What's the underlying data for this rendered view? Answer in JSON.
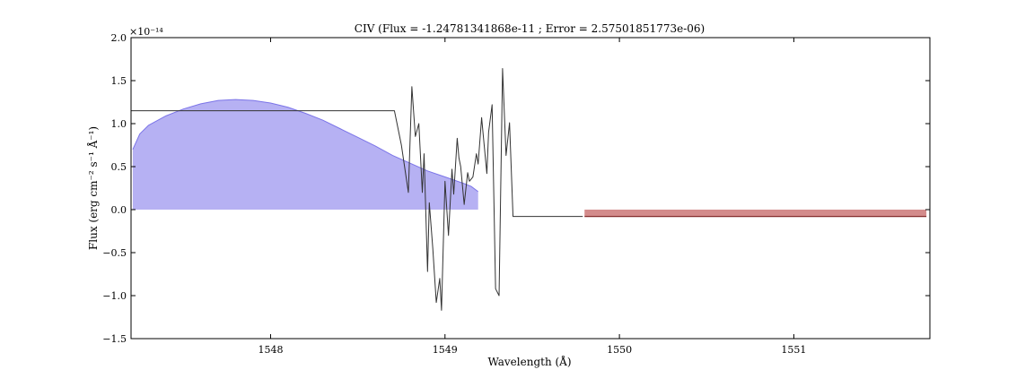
{
  "chart_data": {
    "type": "line",
    "title": "CIV (Flux = -1.24781341868e-11 ; Error = 2.57501851773e-06)",
    "xlabel": "Wavelength (Å)",
    "ylabel": "Flux (erg cm⁻² s⁻¹ Å⁻¹)",
    "y_offset_label": "×10⁻¹⁴",
    "xlim": [
      1547.2,
      1551.78
    ],
    "ylim": [
      -1.5,
      2.0
    ],
    "y_unit_scale": 1e-14,
    "x_ticks": [
      1548,
      1549,
      1550,
      1551
    ],
    "x_tick_labels": [
      "1548",
      "1549",
      "1550",
      "1551"
    ],
    "y_ticks": [
      -1.5,
      -1.0,
      -0.5,
      0.0,
      0.5,
      1.0,
      1.5,
      2.0
    ],
    "y_tick_labels": [
      "−1.5",
      "−1.0",
      "−0.5",
      "0.0",
      "0.5",
      "1.0",
      "1.5",
      "2.0"
    ],
    "grid": false,
    "series": [
      {
        "kind": "line",
        "color": "#333333",
        "x": [
          1547.2,
          1548.71,
          1548.75,
          1548.79,
          1548.81,
          1548.83,
          1548.85,
          1548.87,
          1548.88,
          1548.9,
          1548.91,
          1548.93,
          1548.95,
          1548.97,
          1548.98,
          1549.0,
          1549.02,
          1549.04,
          1549.05,
          1549.07,
          1549.08,
          1549.09,
          1549.11,
          1549.13,
          1549.14,
          1549.16,
          1549.18,
          1549.19,
          1549.21,
          1549.22,
          1549.24,
          1549.25,
          1549.27,
          1549.29,
          1549.31,
          1549.33,
          1549.35,
          1549.37,
          1549.39,
          1549.4,
          1549.42,
          1549.43,
          1549.45,
          1549.47,
          1549.49,
          1549.79
        ],
        "y": [
          1.15,
          1.15,
          0.75,
          0.2,
          1.43,
          0.85,
          1.0,
          0.2,
          0.65,
          -0.72,
          0.08,
          -0.45,
          -1.08,
          -0.8,
          -1.17,
          0.33,
          -0.3,
          0.47,
          0.18,
          0.83,
          0.6,
          0.5,
          0.06,
          0.43,
          0.33,
          0.38,
          0.65,
          0.53,
          1.07,
          0.85,
          0.42,
          0.9,
          1.22,
          -0.92,
          -1.0,
          1.64,
          0.63,
          1.01,
          -0.08,
          -0.08,
          -0.08,
          -0.08,
          -0.08,
          -0.08,
          -0.08,
          -0.08
        ],
        "x_is_uniform": false
      },
      {
        "kind": "area",
        "color": "#7b74e8",
        "fill": "#b6b1f3",
        "x": [
          1547.21,
          1547.25,
          1547.3,
          1547.4,
          1547.5,
          1547.6,
          1547.7,
          1547.8,
          1547.9,
          1548.0,
          1548.1,
          1548.2,
          1548.3,
          1548.4,
          1548.5,
          1548.6,
          1548.7,
          1548.8,
          1548.9,
          1549.0,
          1549.1,
          1549.15,
          1549.19
        ],
        "y": [
          0.7,
          0.88,
          0.98,
          1.09,
          1.17,
          1.23,
          1.27,
          1.28,
          1.27,
          1.24,
          1.19,
          1.12,
          1.04,
          0.94,
          0.84,
          0.74,
          0.63,
          0.54,
          0.45,
          0.38,
          0.31,
          0.27,
          0.21
        ]
      },
      {
        "kind": "band",
        "color": "#7a1f1f",
        "fill": "#d38b8b",
        "x": [
          1549.8,
          1551.76
        ],
        "y_top": 0.0,
        "y_bottom": -0.08
      }
    ]
  }
}
